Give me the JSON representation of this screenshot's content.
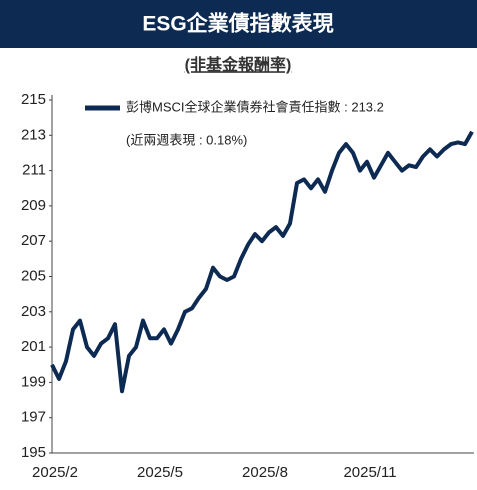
{
  "chart_data": {
    "type": "line",
    "title": "ESG企業債指數表現",
    "subtitle": "(非基金報酬率)",
    "annotation": "(近兩週表現 : 0.18%)",
    "categories": [
      "2025/2",
      null,
      null,
      null,
      null,
      null,
      null,
      null,
      null,
      null,
      null,
      null,
      null,
      null,
      null,
      "2025/5",
      null,
      null,
      null,
      null,
      null,
      null,
      null,
      null,
      null,
      null,
      null,
      null,
      null,
      null,
      "2025/8",
      null,
      null,
      null,
      null,
      null,
      null,
      null,
      null,
      null,
      null,
      null,
      null,
      null,
      null,
      "2025/11",
      null,
      null,
      null,
      null,
      null,
      null,
      null,
      null,
      null,
      null,
      null,
      null,
      null,
      null,
      null
    ],
    "series": [
      {
        "name": "彭博MSCI全球企業債券社會責任指數 : 213.2",
        "color": "#0d2a52",
        "values": [
          200.0,
          199.2,
          200.2,
          202.0,
          202.5,
          201.0,
          200.5,
          201.2,
          201.5,
          202.3,
          198.5,
          200.5,
          201.0,
          202.5,
          201.5,
          201.5,
          202.0,
          201.2,
          202.0,
          203.0,
          203.2,
          203.8,
          204.3,
          205.5,
          205.0,
          204.8,
          205.0,
          206.0,
          206.8,
          207.4,
          207.0,
          207.5,
          207.8,
          207.3,
          208.0,
          210.3,
          210.5,
          210.0,
          210.5,
          209.8,
          211.0,
          212.0,
          212.5,
          212.0,
          211.0,
          211.5,
          210.6,
          211.3,
          212.0,
          211.5,
          211.0,
          211.3,
          211.2,
          211.8,
          212.2,
          211.8,
          212.2,
          212.5,
          212.6,
          212.5,
          213.2
        ]
      }
    ],
    "ylim": [
      195,
      215
    ],
    "yticks": [
      195,
      197,
      199,
      201,
      203,
      205,
      207,
      209,
      211,
      213,
      215
    ],
    "grid": false
  }
}
